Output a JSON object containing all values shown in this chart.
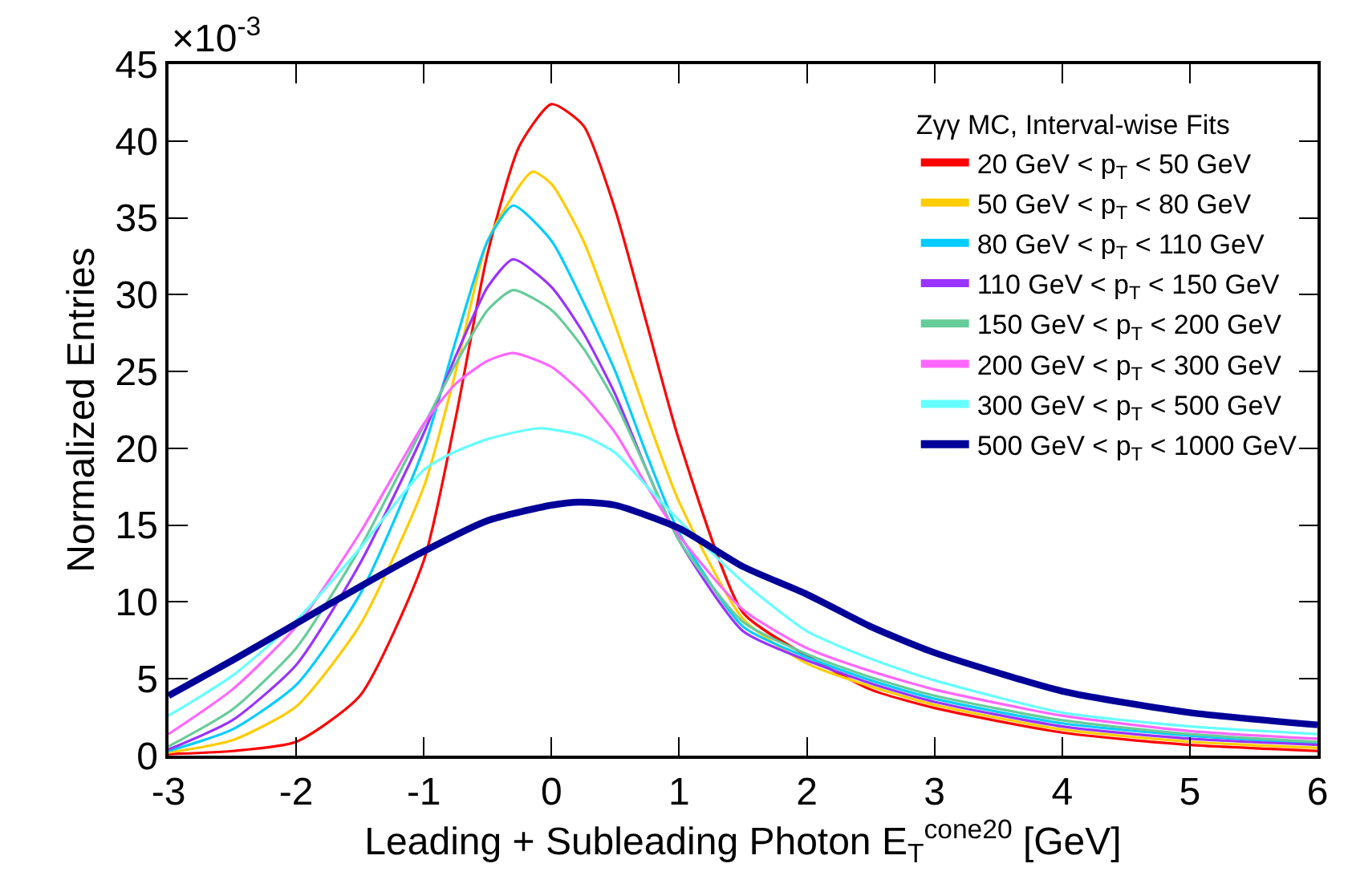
{
  "chart_data": {
    "type": "line",
    "xlabel": "Leading + Subleading Photon E$_{T}$$^{cone20}$ [GeV]",
    "ylabel": "Normalized Entries",
    "legend_title": "Zγγ MC, Interval-wise Fits",
    "annotations": [
      "×10$^{-3}$"
    ],
    "xlim": [
      -3,
      6
    ],
    "xticks": [
      -3,
      -2,
      -1,
      0,
      1,
      2,
      3,
      4,
      5,
      6
    ],
    "ylim": [
      0,
      45
    ],
    "yticks": [
      0,
      5,
      10,
      15,
      20,
      25,
      30,
      35,
      40,
      45
    ],
    "legend": "top right",
    "marker": "none",
    "line_style": "solid",
    "series": [
      {
        "name": "20 GeV < p$_{T}$ < 50 GeV",
        "color": "#ff0000",
        "x": [
          -3,
          -2.5,
          -2,
          -1.5,
          -1,
          -0.75,
          -0.5,
          -0.25,
          0,
          0.25,
          0.5,
          0.75,
          1,
          1.5,
          2,
          2.5,
          3,
          4,
          5,
          6
        ],
        "values": [
          0.1,
          0.3,
          0.9,
          3.9,
          12.7,
          22,
          32.7,
          39.7,
          42.4,
          41,
          35.5,
          28,
          20.5,
          9.3,
          6.5,
          4.3,
          3.1,
          1.5,
          0.7,
          0.3
        ]
      },
      {
        "name": "50 GeV < p$_{T}$ < 80 GeV",
        "color": "#ffcc00",
        "x": [
          -3,
          -2.5,
          -2,
          -1.5,
          -1,
          -0.75,
          -0.5,
          -0.15,
          0,
          0.25,
          0.5,
          0.75,
          1,
          1.5,
          2,
          2.5,
          3,
          4,
          5,
          6
        ],
        "values": [
          0.2,
          1.0,
          3.2,
          8.5,
          17.5,
          25,
          33.5,
          38,
          37.2,
          33.5,
          28,
          22,
          16.5,
          8.9,
          6.0,
          4.5,
          3.3,
          1.7,
          0.9,
          0.5
        ]
      },
      {
        "name": "80 GeV < p$_{T}$ < 110 GeV",
        "color": "#00ccff",
        "x": [
          -3,
          -2.5,
          -2,
          -1.5,
          -1,
          -0.75,
          -0.5,
          -0.3,
          0,
          0.25,
          0.5,
          0.75,
          1,
          1.5,
          2,
          2.5,
          3,
          4,
          5,
          6
        ],
        "values": [
          0.3,
          1.7,
          4.6,
          10.5,
          20,
          27,
          33.5,
          35.8,
          33.5,
          29.5,
          25,
          19.5,
          14.5,
          8.4,
          6.4,
          4.9,
          3.7,
          2.1,
          1.3,
          0.8
        ]
      },
      {
        "name": "110 GeV < p$_{T}$ < 150 GeV",
        "color": "#9933ff",
        "x": [
          -3,
          -2.5,
          -2,
          -1.5,
          -1,
          -0.75,
          -0.5,
          -0.3,
          0,
          0.25,
          0.5,
          0.75,
          1,
          1.5,
          2,
          2.5,
          3,
          4,
          5,
          6
        ],
        "values": [
          0.4,
          2.3,
          5.9,
          12.5,
          21,
          26,
          30.5,
          32.3,
          30.5,
          27.5,
          23.5,
          18.5,
          14,
          8.1,
          6.2,
          4.7,
          3.5,
          1.9,
          1.1,
          0.7
        ]
      },
      {
        "name": "150 GeV < p$_{T}$ < 200 GeV",
        "color": "#66cc99",
        "x": [
          -3,
          -2.5,
          -2,
          -1.5,
          -1,
          -0.75,
          -0.5,
          -0.3,
          0,
          0.25,
          0.5,
          0.75,
          1,
          1.5,
          2,
          2.5,
          3,
          4,
          5,
          6
        ],
        "values": [
          0.6,
          3,
          7,
          13.5,
          21.5,
          25.5,
          29,
          30.3,
          29,
          26.5,
          23,
          18.5,
          14,
          8.7,
          6.6,
          5.1,
          3.9,
          2.3,
          1.4,
          0.9
        ]
      },
      {
        "name": "200 GeV < p$_{T}$ < 300 GeV",
        "color": "#ff66ff",
        "x": [
          -3,
          -2.5,
          -2,
          -1.5,
          -1,
          -0.75,
          -0.5,
          -0.3,
          0,
          0.25,
          0.5,
          0.75,
          1,
          1.5,
          2,
          2.5,
          3,
          4,
          5,
          6
        ],
        "values": [
          1.4,
          4.3,
          8.4,
          14.5,
          21.6,
          24.2,
          25.7,
          26.2,
          25.3,
          23.5,
          21,
          17.5,
          14.3,
          9.5,
          7,
          5.5,
          4.3,
          2.6,
          1.6,
          1.1
        ]
      },
      {
        "name": "300 GeV < p$_{T}$ < 500 GeV",
        "color": "#66ffff",
        "x": [
          -3,
          -2.5,
          -2,
          -1.5,
          -1,
          -0.75,
          -0.5,
          -0.1,
          0.25,
          0.5,
          0.75,
          1,
          1.5,
          2,
          2.5,
          3,
          4,
          5,
          6
        ],
        "values": [
          2.6,
          5.2,
          8.8,
          13.5,
          18.6,
          19.8,
          20.6,
          21.3,
          20.8,
          19.7,
          17.5,
          15.3,
          11.3,
          8.1,
          6.3,
          4.9,
          2.8,
          1.9,
          1.4
        ]
      },
      {
        "name": "500 GeV < p$_{T}$ < 1000 GeV",
        "color": "#000099",
        "x": [
          -3,
          -2.5,
          -2,
          -1.5,
          -1,
          -0.5,
          0,
          0.22,
          0.5,
          1,
          1.5,
          2,
          2.5,
          3,
          4,
          5,
          6
        ],
        "values": [
          3.9,
          6.2,
          8.6,
          11,
          13.3,
          15.3,
          16.3,
          16.5,
          16.3,
          14.8,
          12.3,
          10.5,
          8.4,
          6.7,
          4.2,
          2.8,
          2
        ]
      }
    ]
  }
}
